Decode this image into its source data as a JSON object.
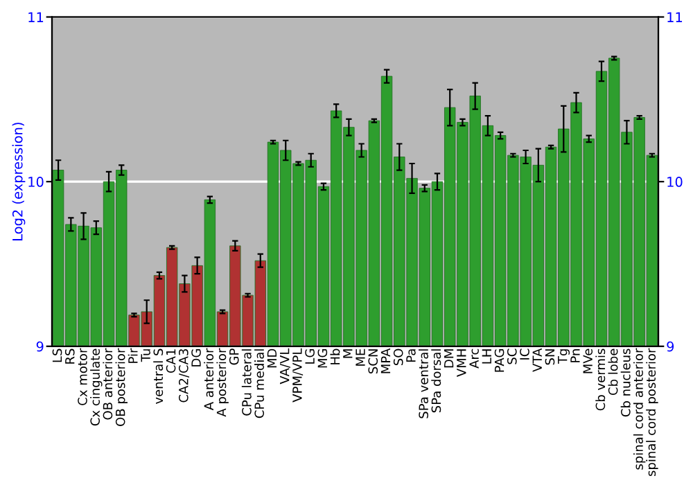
{
  "chart_data": {
    "type": "bar",
    "ylabel": "Log2 (expression)",
    "categories": [
      "LS",
      "RS",
      "Cx motor",
      "Cx cingulate",
      "OB anterior",
      "OB posterior",
      "Pir",
      "Tu",
      "ventral S",
      "CA1",
      "CA2/CA3",
      "DG",
      "A anterior",
      "A posterior",
      "GP",
      "CPu lateral",
      "CPu medial",
      "MD",
      "VA/VL",
      "VPM/VPL",
      "LG",
      "MG",
      "Hb",
      "M",
      "ME",
      "SCN",
      "MPA",
      "SO",
      "Pa",
      "SPa ventral",
      "SPa dorsal",
      "DM",
      "VMH",
      "Arc",
      "LH",
      "PAG",
      "SC",
      "IC",
      "VTA",
      "SN",
      "Tg",
      "Pn",
      "MVe",
      "Cb vermis",
      "Cb lobe",
      "Cb nucleus",
      "spinal cord anterior",
      "spinal cord posterior"
    ],
    "values": [
      10.07,
      9.74,
      9.73,
      9.72,
      10.0,
      10.07,
      9.19,
      9.21,
      9.43,
      9.6,
      9.38,
      9.49,
      9.89,
      9.21,
      9.61,
      9.31,
      9.52,
      10.24,
      10.19,
      10.11,
      10.13,
      9.97,
      10.43,
      10.33,
      10.19,
      10.37,
      10.64,
      10.15,
      10.02,
      9.96,
      10.0,
      10.45,
      10.36,
      10.52,
      10.34,
      10.28,
      10.16,
      10.15,
      10.1,
      10.21,
      10.32,
      10.48,
      10.26,
      10.67,
      10.75,
      10.3,
      10.39,
      10.16
    ],
    "errors": [
      0.06,
      0.04,
      0.08,
      0.04,
      0.06,
      0.03,
      0.01,
      0.07,
      0.02,
      0.01,
      0.05,
      0.05,
      0.02,
      0.01,
      0.03,
      0.01,
      0.04,
      0.01,
      0.06,
      0.01,
      0.04,
      0.02,
      0.04,
      0.05,
      0.04,
      0.01,
      0.04,
      0.08,
      0.09,
      0.02,
      0.05,
      0.11,
      0.02,
      0.08,
      0.06,
      0.02,
      0.01,
      0.04,
      0.1,
      0.01,
      0.14,
      0.06,
      0.02,
      0.06,
      0.01,
      0.07,
      0.01,
      0.01
    ],
    "colors": [
      "#2e9e2e",
      "#2e9e2e",
      "#2e9e2e",
      "#2e9e2e",
      "#2e9e2e",
      "#2e9e2e",
      "#b03232",
      "#b03232",
      "#b03232",
      "#b03232",
      "#b03232",
      "#b03232",
      "#2e9e2e",
      "#b03232",
      "#b03232",
      "#b03232",
      "#b03232",
      "#2e9e2e",
      "#2e9e2e",
      "#2e9e2e",
      "#2e9e2e",
      "#2e9e2e",
      "#2e9e2e",
      "#2e9e2e",
      "#2e9e2e",
      "#2e9e2e",
      "#2e9e2e",
      "#2e9e2e",
      "#2e9e2e",
      "#2e9e2e",
      "#2e9e2e",
      "#2e9e2e",
      "#2e9e2e",
      "#2e9e2e",
      "#2e9e2e",
      "#2e9e2e",
      "#2e9e2e",
      "#2e9e2e",
      "#2e9e2e",
      "#2e9e2e",
      "#2e9e2e",
      "#2e9e2e",
      "#2e9e2e",
      "#2e9e2e",
      "#2e9e2e",
      "#2e9e2e",
      "#2e9e2e",
      "#2e9e2e"
    ],
    "ylim": [
      9,
      11
    ],
    "yticks": [
      9,
      10,
      11
    ],
    "y2lim": [
      9,
      11
    ],
    "y2ticks": [
      9,
      10,
      11
    ],
    "grid": "y"
  }
}
